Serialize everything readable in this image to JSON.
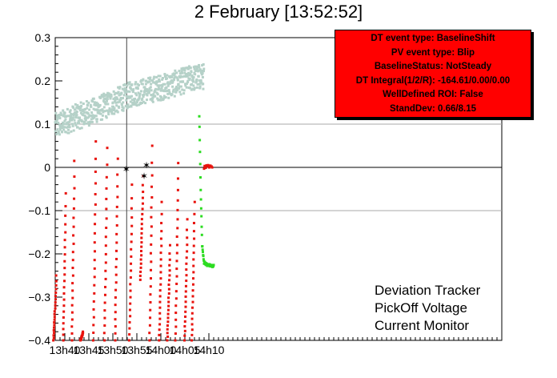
{
  "chart_data": {
    "type": "scatter",
    "title": "2 February [13:52:52]",
    "xlabel": "",
    "ylabel": "",
    "xlim": [
      818,
      911
    ],
    "ylim": [
      -0.4,
      0.3
    ],
    "x_unit": "minutes since 00:00 (13h38 = 818)",
    "xticks": [
      {
        "value": 820,
        "label": "13h40"
      },
      {
        "value": 825,
        "label": "13h45"
      },
      {
        "value": 830,
        "label": "13h50"
      },
      {
        "value": 835,
        "label": "13h55"
      },
      {
        "value": 840,
        "label": "14h00"
      },
      {
        "value": 845,
        "label": "14h05"
      },
      {
        "value": 850,
        "label": "14h10"
      }
    ],
    "yticks": [
      {
        "value": 0.3,
        "label": "0.3"
      },
      {
        "value": 0.2,
        "label": "0.2"
      },
      {
        "value": 0.1,
        "label": "0.1"
      },
      {
        "value": 0,
        "label": "0"
      },
      {
        "value": -0.1,
        "label": "−0.1"
      },
      {
        "value": -0.2,
        "label": "−0.2"
      },
      {
        "value": -0.3,
        "label": "−0.3"
      },
      {
        "value": -0.4,
        "label": "−0.4"
      }
    ],
    "reference_lines": {
      "horizontal": [
        0.1,
        0,
        -0.1
      ],
      "vertical_time": 832.88
    },
    "series": [
      {
        "name": "Current Monitor",
        "color": "#b5d1c8",
        "band": [
          {
            "x": 818,
            "y": 0.095
          },
          {
            "x": 822,
            "y": 0.115
          },
          {
            "x": 826,
            "y": 0.13
          },
          {
            "x": 830,
            "y": 0.15
          },
          {
            "x": 834,
            "y": 0.17
          },
          {
            "x": 838,
            "y": 0.18
          },
          {
            "x": 842,
            "y": 0.19
          },
          {
            "x": 846,
            "y": 0.205
          },
          {
            "x": 849,
            "y": 0.21
          }
        ]
      },
      {
        "name": "Deviation Tracker",
        "color": "#e8120c",
        "drops": [
          {
            "x": 818.2,
            "top": -0.25,
            "bottom": -0.4
          },
          {
            "x": 820.2,
            "top": -0.06,
            "bottom": -0.4
          },
          {
            "x": 822.0,
            "top": 0.015,
            "bottom": -0.4
          },
          {
            "x": 823.8,
            "top": -0.38,
            "bottom": -0.4
          },
          {
            "x": 826.5,
            "top": 0.06,
            "bottom": -0.4
          },
          {
            "x": 828.8,
            "top": 0.045,
            "bottom": -0.4
          },
          {
            "x": 831.0,
            "top": 0.02,
            "bottom": -0.4
          },
          {
            "x": 834.0,
            "top": -0.04,
            "bottom": -0.4
          },
          {
            "x": 836.3,
            "top": -0.02,
            "bottom": -0.26
          },
          {
            "x": 838.2,
            "top": 0.05,
            "bottom": -0.4
          },
          {
            "x": 840.2,
            "top": -0.08,
            "bottom": -0.4
          },
          {
            "x": 841.9,
            "top": -0.18,
            "bottom": -0.4
          },
          {
            "x": 843.6,
            "top": 0.01,
            "bottom": -0.4
          },
          {
            "x": 845.5,
            "top": -0.12,
            "bottom": -0.4
          },
          {
            "x": 847.0,
            "top": -0.08,
            "bottom": -0.4
          }
        ],
        "tail": [
          {
            "x": 849.0,
            "y": 0.0
          },
          {
            "x": 849.6,
            "y": 0.003
          },
          {
            "x": 850.2,
            "y": 0.002
          },
          {
            "x": 850.8,
            "y": 0.0
          }
        ]
      },
      {
        "name": "PickOff Voltage",
        "color": "#2ddc22",
        "points": [
          {
            "x": 848.0,
            "y": 0.12
          },
          {
            "x": 848.3,
            "y": -0.05
          },
          {
            "x": 848.6,
            "y": -0.18
          },
          {
            "x": 849.0,
            "y": -0.22
          },
          {
            "x": 849.6,
            "y": -0.225
          },
          {
            "x": 850.4,
            "y": -0.228
          },
          {
            "x": 851.0,
            "y": -0.228
          }
        ]
      }
    ],
    "markers": [
      {
        "x": 837.0,
        "y": 0.005
      },
      {
        "x": 836.5,
        "y": -0.02
      },
      {
        "x": 832.8,
        "y": -0.005
      }
    ],
    "legend": [
      "Deviation Tracker",
      "PickOff Voltage",
      "Current Monitor"
    ],
    "legend_position": "bottom-right"
  },
  "stats_box": [
    "DT event type: BaselineShift",
    "PV event type: Blip",
    "BaselineStatus: NotSteady",
    "DT Integral(1/2/R): -164.61/0.00/0.00",
    "WellDefined ROI: False",
    "StandDev: 0.66/8.15"
  ]
}
